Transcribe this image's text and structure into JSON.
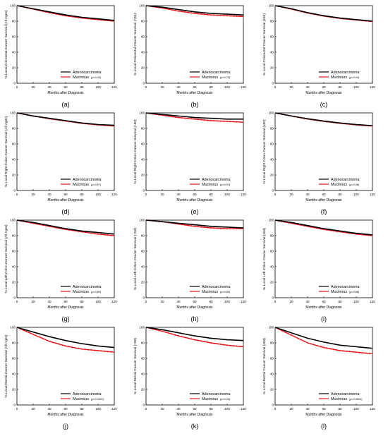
{
  "figure": {
    "x_ticks": [
      0,
      20,
      40,
      60,
      80,
      100,
      120
    ],
    "y_ticks": [
      0,
      20,
      40,
      60,
      80,
      100
    ],
    "colors": {
      "adeno": "#000000",
      "mucinous": "#e8141c",
      "axis": "#000000"
    }
  },
  "chart_data": [
    {
      "type": "line",
      "panel_label": "(a)",
      "ylabel": "% Local Colorectal Cancer Survival (All Ages)",
      "xlabel": "Months after Diagnosis",
      "xlim": [
        0,
        120
      ],
      "ylim": [
        0,
        100
      ],
      "x": [
        0,
        20,
        40,
        60,
        80,
        100,
        120
      ],
      "series": [
        {
          "name": "Adenocarcinoma",
          "values": [
            100,
            96,
            92,
            88,
            85,
            83,
            81
          ]
        },
        {
          "name": "Mucinous",
          "p_text": "(p=0.03)",
          "values": [
            100,
            95.5,
            91,
            87,
            84,
            82,
            80
          ]
        }
      ]
    },
    {
      "type": "line",
      "panel_label": "(b)",
      "ylabel": "% Local Colorectal Cancer Survival (<50)",
      "xlabel": "Months after Diagnosis",
      "xlim": [
        0,
        120
      ],
      "ylim": [
        0,
        100
      ],
      "x": [
        0,
        20,
        40,
        60,
        80,
        100,
        120
      ],
      "series": [
        {
          "name": "Adenocarcinoma",
          "values": [
            100,
            98,
            95,
            92,
            90,
            89,
            88
          ]
        },
        {
          "name": "Mucinous",
          "p_text": "(p=0.73)",
          "values": [
            100,
            97,
            93,
            90,
            88,
            87,
            86
          ]
        }
      ]
    },
    {
      "type": "line",
      "panel_label": "(c)",
      "ylabel": "% Local Colorectal Cancer Survival (≥50)",
      "xlabel": "Months after Diagnosis",
      "xlim": [
        0,
        120
      ],
      "ylim": [
        0,
        100
      ],
      "x": [
        0,
        20,
        40,
        60,
        80,
        100,
        120
      ],
      "series": [
        {
          "name": "Adenocarcinoma",
          "values": [
            100,
            96,
            91,
            87,
            84,
            82,
            80
          ]
        },
        {
          "name": "Mucinous",
          "p_text": "(p=0.04)",
          "values": [
            100,
            95.5,
            90.5,
            86.5,
            83.5,
            81.5,
            79.5
          ]
        }
      ]
    },
    {
      "type": "line",
      "panel_label": "(d)",
      "ylabel": "% Local Right Colon Cancer Survival (All Ages)",
      "xlabel": "Months after Diagnosis",
      "xlim": [
        0,
        120
      ],
      "ylim": [
        0,
        100
      ],
      "x": [
        0,
        20,
        40,
        60,
        80,
        100,
        120
      ],
      "series": [
        {
          "name": "Adenocarcinoma",
          "values": [
            100,
            96,
            93,
            90,
            87,
            85,
            84
          ]
        },
        {
          "name": "Mucinous",
          "p_text": "(p=0.57)",
          "values": [
            100,
            96,
            92.5,
            89.5,
            86.5,
            84.5,
            83
          ]
        }
      ]
    },
    {
      "type": "line",
      "panel_label": "(e)",
      "ylabel": "% Local Right Colon Cancer Survival (<50)",
      "xlabel": "Months after Diagnosis",
      "xlim": [
        0,
        120
      ],
      "ylim": [
        0,
        100
      ],
      "x": [
        0,
        20,
        40,
        60,
        80,
        100,
        120
      ],
      "series": [
        {
          "name": "Adenocarcinoma",
          "values": [
            100,
            98,
            96,
            94,
            93,
            92,
            92
          ]
        },
        {
          "name": "Mucinous",
          "p_text": "(p=0.57)",
          "values": [
            100,
            97,
            94,
            92,
            90,
            89,
            88
          ]
        }
      ]
    },
    {
      "type": "line",
      "panel_label": "(f)",
      "ylabel": "% Local Right Colon Cancer Survival (≥50)",
      "xlabel": "Months after Diagnosis",
      "xlim": [
        0,
        120
      ],
      "ylim": [
        0,
        100
      ],
      "x": [
        0,
        20,
        40,
        60,
        80,
        100,
        120
      ],
      "series": [
        {
          "name": "Adenocarcinoma",
          "values": [
            100,
            96,
            92.5,
            89.5,
            87,
            85,
            83.5
          ]
        },
        {
          "name": "Mucinous",
          "p_text": "(p=0.38)",
          "values": [
            100,
            96,
            92,
            89,
            86.5,
            84.5,
            83
          ]
        }
      ]
    },
    {
      "type": "line",
      "panel_label": "(g)",
      "ylabel": "% Local Left Colon Cancer Survival (All Ages)",
      "xlabel": "Months after Diagnosis",
      "xlim": [
        0,
        120
      ],
      "ylim": [
        0,
        100
      ],
      "x": [
        0,
        20,
        40,
        60,
        80,
        100,
        120
      ],
      "series": [
        {
          "name": "Adenocarcinoma",
          "values": [
            100,
            97,
            93,
            89,
            86,
            84,
            82
          ]
        },
        {
          "name": "Mucinous",
          "p_text": "(p=0.80)",
          "values": [
            100,
            96,
            92,
            88,
            85,
            82,
            80
          ]
        }
      ]
    },
    {
      "type": "line",
      "panel_label": "(h)",
      "ylabel": "% Local Left Colon Cancer Survival (<50)",
      "xlabel": "Months after Diagnosis",
      "xlim": [
        0,
        120
      ],
      "ylim": [
        0,
        100
      ],
      "x": [
        0,
        20,
        40,
        60,
        80,
        100,
        120
      ],
      "series": [
        {
          "name": "Adenocarcinoma",
          "values": [
            100,
            98,
            96,
            94,
            92,
            91,
            90
          ]
        },
        {
          "name": "Mucinous",
          "p_text": "(p=0.83)",
          "values": [
            100,
            98,
            95,
            92,
            90,
            89,
            89
          ]
        }
      ]
    },
    {
      "type": "line",
      "panel_label": "(i)",
      "ylabel": "% Local Left Colon Cancer Survival (≥50)",
      "xlabel": "Months after Diagnosis",
      "xlim": [
        0,
        120
      ],
      "ylim": [
        0,
        100
      ],
      "x": [
        0,
        20,
        40,
        60,
        80,
        100,
        120
      ],
      "series": [
        {
          "name": "Adenocarcinoma",
          "values": [
            100,
            97,
            93,
            89,
            86,
            83,
            81
          ]
        },
        {
          "name": "Mucinous",
          "p_text": "(p=0.86)",
          "values": [
            100,
            96,
            92,
            88,
            85,
            82,
            80
          ]
        }
      ]
    },
    {
      "type": "line",
      "panel_label": "(j)",
      "ylabel": "% Local Rectal Cancer Survival (All Ages)",
      "xlabel": "Months after Diagnosis",
      "xlim": [
        0,
        120
      ],
      "ylim": [
        0,
        100
      ],
      "x": [
        0,
        20,
        40,
        60,
        80,
        100,
        120
      ],
      "series": [
        {
          "name": "Adenocarcinoma",
          "values": [
            100,
            94,
            88,
            83,
            79,
            76,
            74
          ]
        },
        {
          "name": "Mucinous",
          "p_text": "(p<0.0001)",
          "values": [
            100,
            91,
            82,
            76,
            72,
            70,
            68
          ]
        }
      ]
    },
    {
      "type": "line",
      "panel_label": "(k)",
      "ylabel": "% Local Rectal Cancer Survival (<50)",
      "xlabel": "Months after Diagnosis",
      "xlim": [
        0,
        120
      ],
      "ylim": [
        0,
        100
      ],
      "x": [
        0,
        20,
        40,
        60,
        80,
        100,
        120
      ],
      "series": [
        {
          "name": "Adenocarcinoma",
          "values": [
            100,
            97,
            93,
            89,
            86,
            84,
            83
          ]
        },
        {
          "name": "Mucinous",
          "p_text": "(p=0.03)",
          "values": [
            100,
            95,
            89,
            84,
            80,
            77,
            75
          ]
        }
      ]
    },
    {
      "type": "line",
      "panel_label": "(l)",
      "ylabel": "% Local Rectal Cancer Survival (≥50)",
      "xlabel": "Months after Diagnosis",
      "xlim": [
        0,
        120
      ],
      "ylim": [
        0,
        100
      ],
      "x": [
        0,
        20,
        40,
        60,
        80,
        100,
        120
      ],
      "series": [
        {
          "name": "Adenocarcinoma",
          "values": [
            100,
            93,
            86,
            81,
            77,
            75,
            73
          ]
        },
        {
          "name": "Mucinous",
          "p_text": "(p<0.0001)",
          "values": [
            100,
            90,
            80,
            74,
            70,
            68,
            66
          ]
        }
      ]
    }
  ]
}
